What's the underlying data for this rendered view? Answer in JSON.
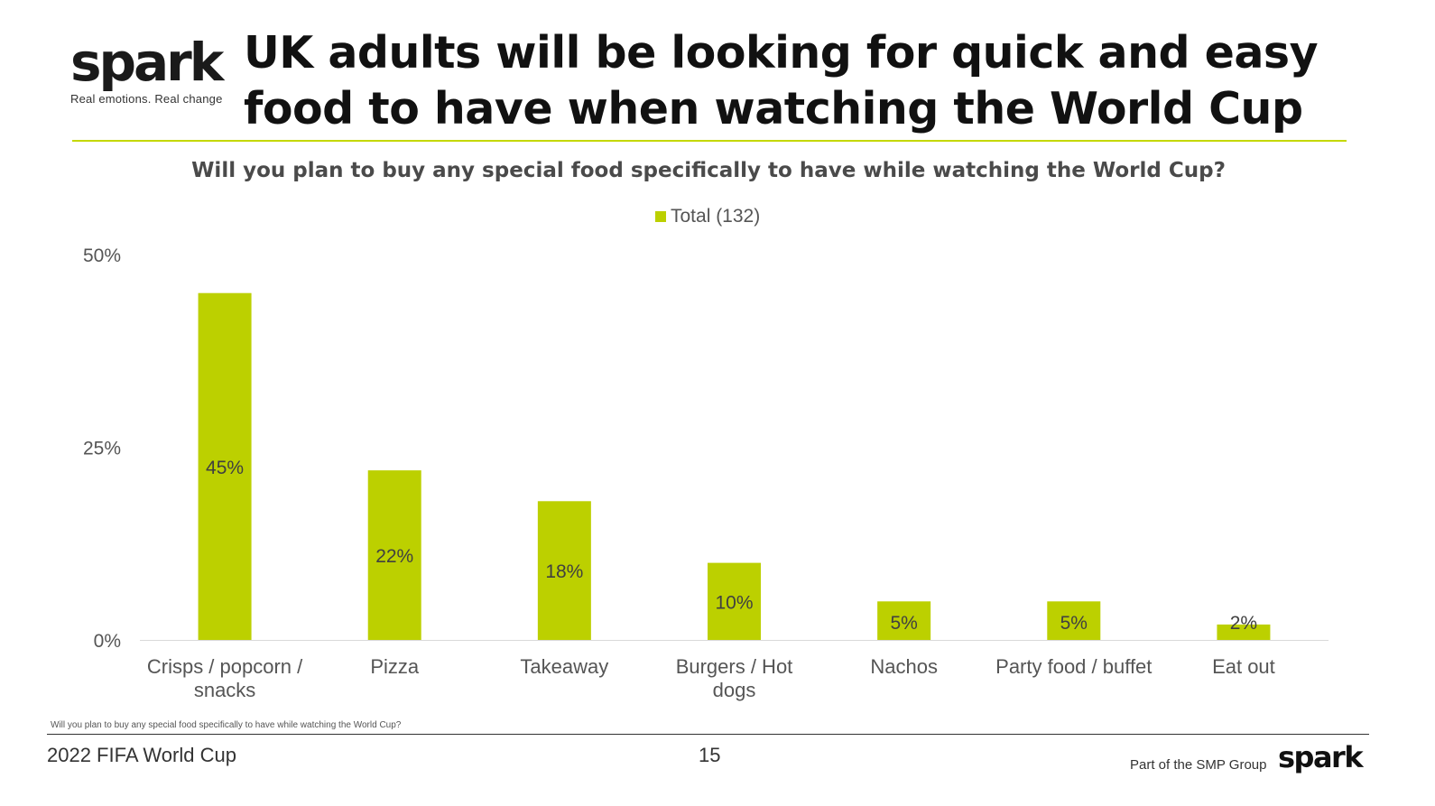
{
  "brand": {
    "logo": "spark",
    "tagline": "Real emotions. Real change"
  },
  "header": {
    "title": "UK adults will be looking for quick and easy food to have when watching the World Cup"
  },
  "footer": {
    "footnote": "Will you plan to buy any special food specifically to have while watching the World Cup?",
    "left": "2022 FIFA World Cup",
    "page": "15",
    "group": "Part of the SMP Group",
    "logo": "spark"
  },
  "colors": {
    "bar": "#bcd000",
    "accent_rule": "#c4d800",
    "axis_text": "#555555"
  },
  "chart_data": {
    "type": "bar",
    "title": "Will you plan to buy any special food specifically to have while watching the World Cup?",
    "categories": [
      [
        "Crisps / popcorn /",
        "snacks"
      ],
      [
        "Pizza"
      ],
      [
        "Takeaway"
      ],
      [
        "Burgers / Hot",
        "dogs"
      ],
      [
        "Nachos"
      ],
      [
        "Party food / buffet"
      ],
      [
        "Eat out"
      ]
    ],
    "series": [
      {
        "name": "Total (132)",
        "values": [
          45,
          22,
          18,
          10,
          5,
          5,
          2
        ],
        "labels": [
          "45%",
          "22%",
          "18%",
          "10%",
          "5%",
          "5%",
          "2%"
        ]
      }
    ],
    "yticks": [
      "0%",
      "25%",
      "50%"
    ],
    "ylim": [
      0,
      50
    ],
    "grid": false,
    "legend": "top-center"
  }
}
